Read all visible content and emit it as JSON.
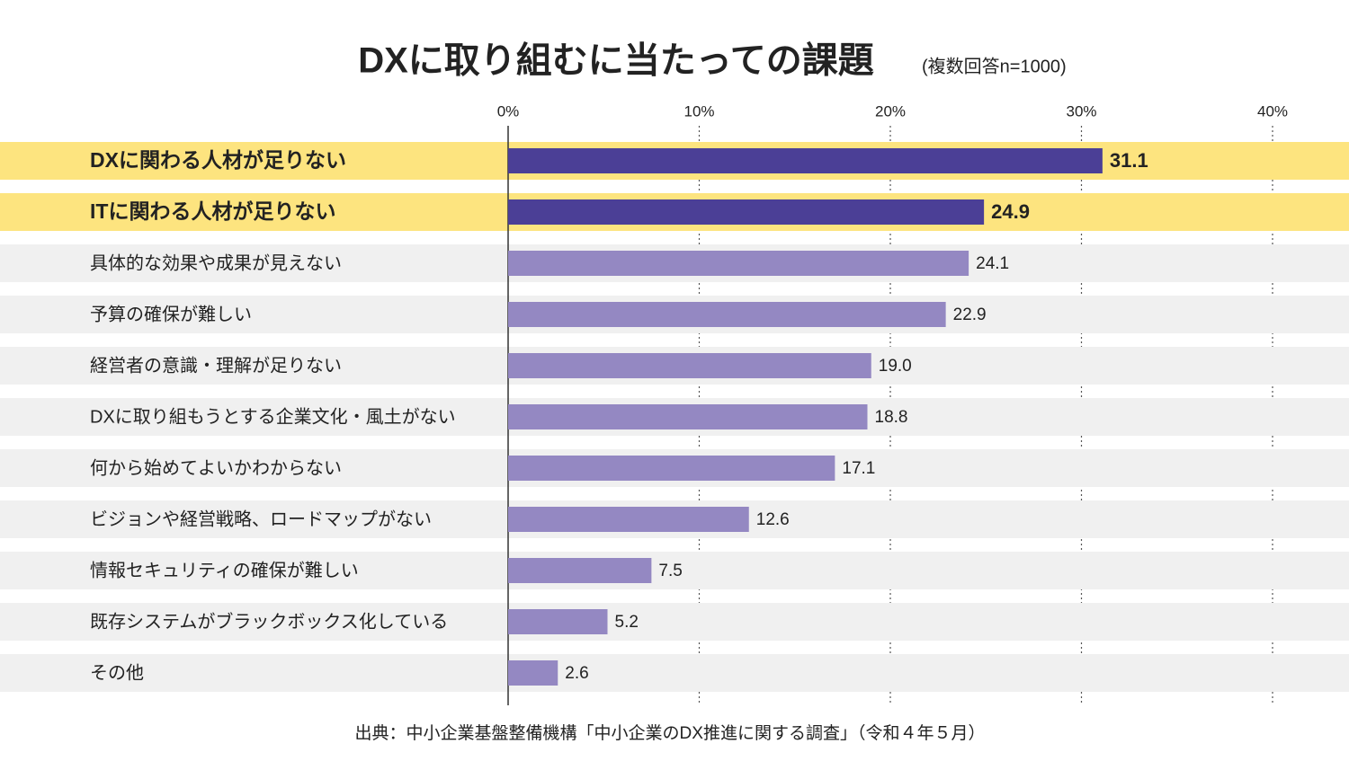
{
  "chart_data": {
    "type": "bar",
    "orientation": "horizontal",
    "title": "DXに取り組むに当たっての課題",
    "subtitle": "(複数回答n=1000)",
    "categories": [
      "DXに関わる人材が足りない",
      "ITに関わる人材が足りない",
      "具体的な効果や成果が見えない",
      "予算の確保が難しい",
      "経営者の意識・理解が足りない",
      "DXに取り組もうとする企業文化・風土がない",
      "何から始めてよいかわからない",
      "ビジョンや経営戦略、ロードマップがない",
      "情報セキュリティの確保が難しい",
      "既存システムがブラックボックス化している",
      "その他"
    ],
    "values": [
      31.1,
      24.9,
      24.1,
      22.9,
      19.0,
      18.8,
      17.1,
      12.6,
      7.5,
      5.2,
      2.6
    ],
    "value_labels": [
      "31.1",
      "24.9",
      "24.1",
      "22.9",
      "19.0",
      "18.8",
      "17.1",
      "12.6",
      "7.5",
      "5.2",
      "2.6"
    ],
    "bar_colors": [
      "#4b3f96",
      "#4b3f96",
      "#9488c2",
      "#9488c2",
      "#9488c2",
      "#9488c2",
      "#9488c2",
      "#9488c2",
      "#9488c2",
      "#9488c2",
      "#9488c2"
    ],
    "row_colors": [
      "#fde47f",
      "#fde47f",
      "#f0f0f0",
      "#f0f0f0",
      "#f0f0f0",
      "#f0f0f0",
      "#f0f0f0",
      "#f0f0f0",
      "#f0f0f0",
      "#f0f0f0",
      "#f0f0f0"
    ],
    "highlight": [
      true,
      true,
      false,
      false,
      false,
      false,
      false,
      false,
      false,
      false,
      false
    ],
    "xlim": [
      0,
      40
    ],
    "xticks": [
      {
        "value": 0,
        "label": "0%"
      },
      {
        "value": 10,
        "label": "10%"
      },
      {
        "value": 20,
        "label": "20%"
      },
      {
        "value": 30,
        "label": "30%"
      },
      {
        "value": 40,
        "label": "40%"
      }
    ],
    "grid": true,
    "source": "出典：中小企業基盤整備機構「中小企業のDX推進に関する調査」（令和４年５月）"
  }
}
